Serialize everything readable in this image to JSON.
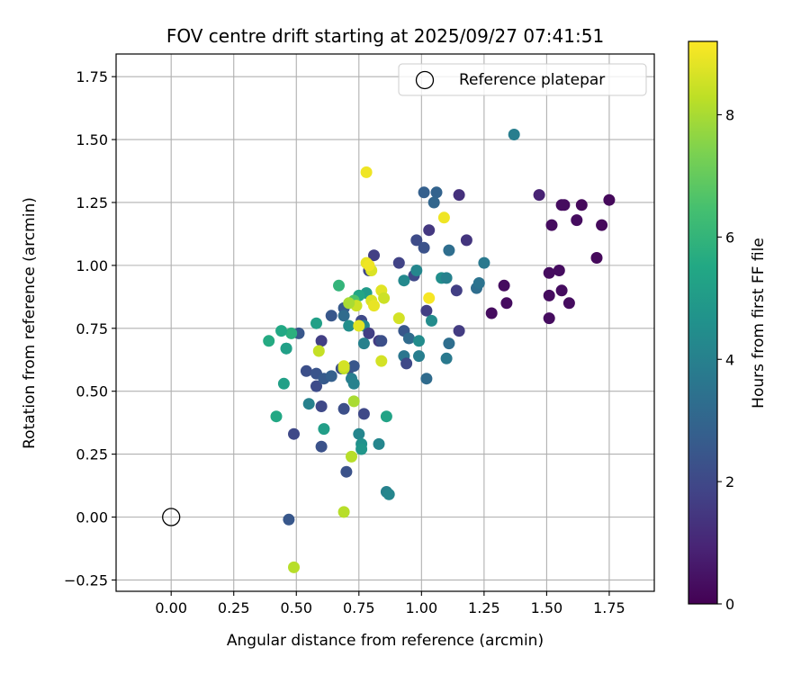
{
  "chart_data": {
    "type": "scatter",
    "title": "FOV centre drift starting at 2025/09/27 07:41:51",
    "xlabel": "Angular distance from reference (arcmin)",
    "ylabel": "Rotation from reference (arcmin)",
    "xlim": [
      -0.22,
      1.93
    ],
    "ylim": [
      -0.295,
      1.84
    ],
    "xticks": [
      "0.00",
      "0.25",
      "0.50",
      "0.75",
      "1.00",
      "1.25",
      "1.50",
      "1.75"
    ],
    "xtick_values": [
      0,
      0.25,
      0.5,
      0.75,
      1.0,
      1.25,
      1.5,
      1.75
    ],
    "yticks": [
      "−0.25",
      "0.00",
      "0.25",
      "0.50",
      "0.75",
      "1.00",
      "1.25",
      "1.50",
      "1.75"
    ],
    "ytick_values": [
      -0.25,
      0,
      0.25,
      0.5,
      0.75,
      1.0,
      1.25,
      1.5,
      1.75
    ],
    "grid": true,
    "legend": {
      "position": "top-right",
      "entries": [
        {
          "label": "Reference platepar",
          "marker": "open-circle"
        }
      ]
    },
    "reference_point": {
      "x": 0.0,
      "y": 0.0
    },
    "colorbar": {
      "label": "Hours from first FF file",
      "colormap": "viridis",
      "range": [
        0,
        9.2
      ],
      "ticks": [
        "0",
        "2",
        "4",
        "6",
        "8"
      ],
      "tick_values": [
        0,
        2,
        4,
        6,
        8
      ]
    },
    "points": [
      [
        1.37,
        1.52,
        3.9
      ],
      [
        1.47,
        1.28,
        0.9
      ],
      [
        1.56,
        1.24,
        0.3
      ],
      [
        1.57,
        1.24,
        0.3
      ],
      [
        1.64,
        1.24,
        0.2
      ],
      [
        1.75,
        1.26,
        0.2
      ],
      [
        1.52,
        1.16,
        0.3
      ],
      [
        1.62,
        1.18,
        0.3
      ],
      [
        1.72,
        1.16,
        0.2
      ],
      [
        1.7,
        1.03,
        0.2
      ],
      [
        1.51,
        0.97,
        0.3
      ],
      [
        1.55,
        0.98,
        0.3
      ],
      [
        1.51,
        0.88,
        0.3
      ],
      [
        1.56,
        0.9,
        0.3
      ],
      [
        1.59,
        0.85,
        0.3
      ],
      [
        1.33,
        0.92,
        0.3
      ],
      [
        1.34,
        0.85,
        0.3
      ],
      [
        1.28,
        0.81,
        0.3
      ],
      [
        1.51,
        0.79,
        0.3
      ],
      [
        1.01,
        1.29,
        2.8
      ],
      [
        1.06,
        1.29,
        2.9
      ],
      [
        1.05,
        1.25,
        3.0
      ],
      [
        1.15,
        1.28,
        1.3
      ],
      [
        1.03,
        1.14,
        1.5
      ],
      [
        1.18,
        1.1,
        1.4
      ],
      [
        0.98,
        1.1,
        2.1
      ],
      [
        1.01,
        1.07,
        2.3
      ],
      [
        1.11,
        1.06,
        3.3
      ],
      [
        1.25,
        1.01,
        3.7
      ],
      [
        0.91,
        1.01,
        1.8
      ],
      [
        0.97,
        0.96,
        2.0
      ],
      [
        0.98,
        0.98,
        4.2
      ],
      [
        1.08,
        0.95,
        4.5
      ],
      [
        1.1,
        0.95,
        4.0
      ],
      [
        1.14,
        0.9,
        1.7
      ],
      [
        1.22,
        0.91,
        3.3
      ],
      [
        1.23,
        0.93,
        3.5
      ],
      [
        0.93,
        0.94,
        4.3
      ],
      [
        0.81,
        1.04,
        1.7
      ],
      [
        0.79,
        0.98,
        1.9
      ],
      [
        0.93,
        0.74,
        2.5
      ],
      [
        0.95,
        0.71,
        3.2
      ],
      [
        0.99,
        0.7,
        4.4
      ],
      [
        1.02,
        0.82,
        1.7
      ],
      [
        1.04,
        0.78,
        4.4
      ],
      [
        1.15,
        0.74,
        1.6
      ],
      [
        1.11,
        0.69,
        3.3
      ],
      [
        1.1,
        0.63,
        3.7
      ],
      [
        0.99,
        0.64,
        3.9
      ],
      [
        0.93,
        0.64,
        3.6
      ],
      [
        0.94,
        0.61,
        2.0
      ],
      [
        1.02,
        0.55,
        3.2
      ],
      [
        0.67,
        0.92,
        6.0
      ],
      [
        0.78,
        0.89,
        5.0
      ],
      [
        0.75,
        0.88,
        5.4
      ],
      [
        0.73,
        0.86,
        6.6
      ],
      [
        0.69,
        0.83,
        2.6
      ],
      [
        0.69,
        0.8,
        3.2
      ],
      [
        0.64,
        0.8,
        2.5
      ],
      [
        0.76,
        0.78,
        2.0
      ],
      [
        0.71,
        0.76,
        4.5
      ],
      [
        0.77,
        0.76,
        4.2
      ],
      [
        0.79,
        0.73,
        1.7
      ],
      [
        0.77,
        0.69,
        4.0
      ],
      [
        0.83,
        0.7,
        1.6
      ],
      [
        0.84,
        0.7,
        2.2
      ],
      [
        0.6,
        0.7,
        1.7
      ],
      [
        0.58,
        0.77,
        5.2
      ],
      [
        0.51,
        0.73,
        2.5
      ],
      [
        0.48,
        0.73,
        5.8
      ],
      [
        0.44,
        0.74,
        5.5
      ],
      [
        0.39,
        0.7,
        5.6
      ],
      [
        0.46,
        0.67,
        4.4
      ],
      [
        0.46,
        0.67,
        5.2
      ],
      [
        0.54,
        0.58,
        2.2
      ],
      [
        0.58,
        0.57,
        2.4
      ],
      [
        0.58,
        0.52,
        2.1
      ],
      [
        0.61,
        0.55,
        2.6
      ],
      [
        0.64,
        0.56,
        2.8
      ],
      [
        0.68,
        0.59,
        2.2
      ],
      [
        0.71,
        0.59,
        2.3
      ],
      [
        0.73,
        0.6,
        2.5
      ],
      [
        0.72,
        0.55,
        3.9
      ],
      [
        0.73,
        0.53,
        4.0
      ],
      [
        0.45,
        0.53,
        5.2
      ],
      [
        0.55,
        0.45,
        4.0
      ],
      [
        0.6,
        0.44,
        2.0
      ],
      [
        0.69,
        0.43,
        2.2
      ],
      [
        0.77,
        0.41,
        2.0
      ],
      [
        0.86,
        0.4,
        5.3
      ],
      [
        0.42,
        0.4,
        5.5
      ],
      [
        0.61,
        0.35,
        5.1
      ],
      [
        0.49,
        0.33,
        2.0
      ],
      [
        0.75,
        0.33,
        4.2
      ],
      [
        0.76,
        0.29,
        4.6
      ],
      [
        0.76,
        0.27,
        4.8
      ],
      [
        0.83,
        0.29,
        4.2
      ],
      [
        0.6,
        0.28,
        2.3
      ],
      [
        0.7,
        0.18,
        2.3
      ],
      [
        0.86,
        0.1,
        4.0
      ],
      [
        0.87,
        0.09,
        4.2
      ],
      [
        0.47,
        -0.01,
        2.5
      ],
      [
        0.78,
        1.37,
        9.0
      ],
      [
        0.78,
        1.01,
        8.9
      ],
      [
        0.8,
        0.98,
        8.7
      ],
      [
        0.79,
        1.0,
        9.0
      ],
      [
        1.09,
        1.19,
        9.0
      ],
      [
        0.84,
        0.9,
        8.8
      ],
      [
        0.85,
        0.87,
        8.5
      ],
      [
        0.8,
        0.86,
        8.7
      ],
      [
        0.81,
        0.84,
        8.9
      ],
      [
        0.74,
        0.84,
        8.5
      ],
      [
        0.71,
        0.85,
        8.0
      ],
      [
        1.03,
        0.87,
        9.1
      ],
      [
        0.91,
        0.79,
        8.6
      ],
      [
        0.75,
        0.76,
        8.8
      ],
      [
        0.59,
        0.66,
        8.4
      ],
      [
        0.84,
        0.62,
        8.6
      ],
      [
        0.69,
        0.59,
        8.3
      ],
      [
        0.69,
        0.6,
        8.6
      ],
      [
        0.73,
        0.46,
        8.0
      ],
      [
        0.72,
        0.24,
        8.2
      ],
      [
        0.69,
        0.02,
        8.2
      ],
      [
        0.49,
        -0.2,
        8.2
      ]
    ]
  }
}
